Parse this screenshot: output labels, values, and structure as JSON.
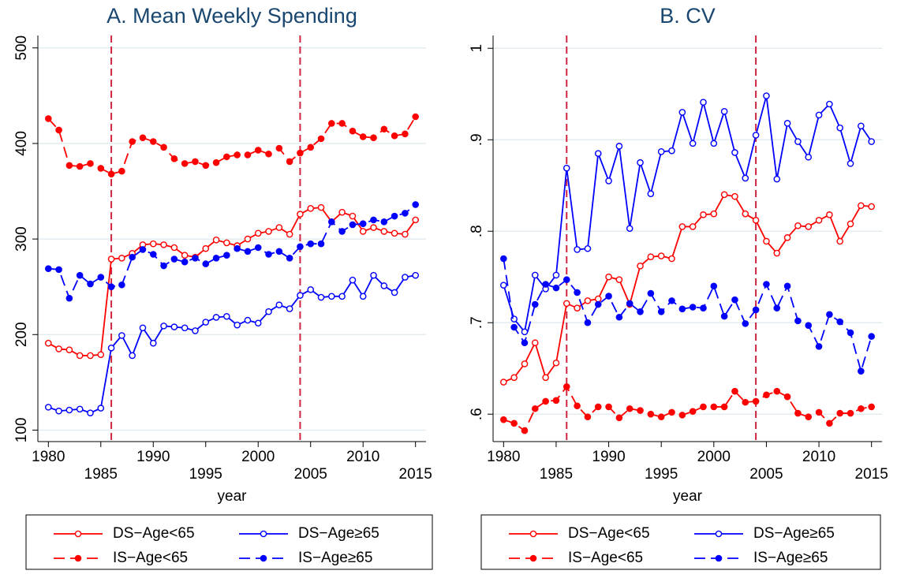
{
  "chart_data": [
    {
      "type": "line",
      "title": "A. Mean Weekly Spending",
      "xlabel": "year",
      "x": [
        1980,
        1981,
        1982,
        1983,
        1984,
        1985,
        1986,
        1987,
        1988,
        1989,
        1990,
        1991,
        1992,
        1993,
        1994,
        1995,
        1996,
        1997,
        1998,
        1999,
        2000,
        2001,
        2002,
        2003,
        2004,
        2005,
        2006,
        2007,
        2008,
        2009,
        2010,
        2011,
        2012,
        2013,
        2014,
        2015
      ],
      "xlim": [
        1979,
        2016
      ],
      "xticks": [
        1980,
        1985,
        1990,
        1995,
        2000,
        2005,
        2010,
        2015
      ],
      "ylim": [
        88,
        513
      ],
      "yticks": [
        100,
        200,
        300,
        400,
        500
      ],
      "grid": true,
      "vlines": [
        1986,
        2004
      ],
      "vline_color": "#d0243f",
      "series": [
        {
          "name": "DS−Age<65",
          "color": "#ff0000",
          "dashed": false,
          "marker": "hollow",
          "values": [
            191,
            185,
            184,
            178,
            178,
            179,
            279,
            280,
            285,
            294,
            295,
            294,
            291,
            283,
            281,
            290,
            299,
            296,
            293,
            300,
            306,
            308,
            312,
            305,
            326,
            332,
            333,
            318,
            328,
            324,
            308,
            312,
            308,
            306,
            305,
            320
          ]
        },
        {
          "name": "DS−Age≥65",
          "color": "#0000ff",
          "dashed": false,
          "marker": "hollow",
          "values": [
            124,
            120,
            121,
            122,
            118,
            123,
            186,
            199,
            178,
            207,
            191,
            209,
            208,
            207,
            204,
            213,
            218,
            219,
            210,
            215,
            212,
            224,
            231,
            227,
            241,
            247,
            239,
            240,
            240,
            257,
            240,
            262,
            251,
            244,
            260,
            262
          ]
        },
        {
          "name": "IS−Age<65",
          "color": "#ff0000",
          "dashed": true,
          "marker": "filled",
          "values": [
            426,
            414,
            377,
            376,
            379,
            374,
            368,
            371,
            402,
            406,
            402,
            396,
            384,
            379,
            381,
            377,
            380,
            386,
            388,
            388,
            393,
            389,
            395,
            381,
            390,
            396,
            405,
            421,
            421,
            413,
            407,
            406,
            415,
            408,
            410,
            428
          ]
        },
        {
          "name": "IS−Age≥65",
          "color": "#0000ff",
          "dashed": true,
          "marker": "filled",
          "values": [
            269,
            268,
            238,
            262,
            253,
            260,
            250,
            252,
            281,
            289,
            284,
            272,
            279,
            276,
            280,
            274,
            280,
            283,
            290,
            287,
            291,
            284,
            287,
            280,
            292,
            295,
            295,
            318,
            308,
            315,
            316,
            320,
            318,
            324,
            327,
            336
          ]
        }
      ]
    },
    {
      "type": "line",
      "title": "B. CV",
      "xlabel": "year",
      "x": [
        1980,
        1981,
        1982,
        1983,
        1984,
        1985,
        1986,
        1987,
        1988,
        1989,
        1990,
        1991,
        1992,
        1993,
        1994,
        1995,
        1996,
        1997,
        1998,
        1999,
        2000,
        2001,
        2002,
        2003,
        2004,
        2005,
        2006,
        2007,
        2008,
        2009,
        2010,
        2011,
        2012,
        2013,
        2014,
        2015
      ],
      "xlim": [
        1979,
        2016
      ],
      "xticks": [
        1980,
        1985,
        1990,
        1995,
        2000,
        2005,
        2010,
        2015
      ],
      "ylim": [
        0.57,
        1.014
      ],
      "yticks": [
        {
          "value": 0.6,
          "label": ".6"
        },
        {
          "value": 0.7,
          "label": ".7"
        },
        {
          "value": 0.8,
          "label": ".8"
        },
        {
          "value": 0.9,
          "label": ".9"
        },
        1
      ],
      "grid": true,
      "vlines": [
        1986,
        2004
      ],
      "vline_color": "#d0243f",
      "series": [
        {
          "name": "DS−Age<65",
          "color": "#ff0000",
          "dashed": false,
          "marker": "hollow",
          "values": [
            0.635,
            0.64,
            0.655,
            0.678,
            0.64,
            0.656,
            0.721,
            0.716,
            0.724,
            0.726,
            0.75,
            0.747,
            0.72,
            0.762,
            0.772,
            0.773,
            0.77,
            0.805,
            0.805,
            0.818,
            0.819,
            0.84,
            0.838,
            0.819,
            0.812,
            0.789,
            0.776,
            0.793,
            0.806,
            0.805,
            0.812,
            0.818,
            0.789,
            0.808,
            0.828,
            0.827
          ]
        },
        {
          "name": "DS−Age≥65",
          "color": "#0000ff",
          "dashed": false,
          "marker": "hollow",
          "values": [
            0.741,
            0.704,
            0.69,
            0.752,
            0.737,
            0.752,
            0.869,
            0.78,
            0.781,
            0.885,
            0.855,
            0.893,
            0.803,
            0.875,
            0.841,
            0.887,
            0.888,
            0.93,
            0.896,
            0.941,
            0.896,
            0.931,
            0.886,
            0.858,
            0.905,
            0.948,
            0.857,
            0.918,
            0.898,
            0.881,
            0.927,
            0.939,
            0.913,
            0.874,
            0.915,
            0.898
          ]
        },
        {
          "name": "IS−Age<65",
          "color": "#ff0000",
          "dashed": true,
          "marker": "filled",
          "values": [
            0.594,
            0.59,
            0.582,
            0.606,
            0.614,
            0.615,
            0.63,
            0.609,
            0.597,
            0.608,
            0.608,
            0.596,
            0.606,
            0.604,
            0.6,
            0.597,
            0.602,
            0.599,
            0.603,
            0.608,
            0.608,
            0.608,
            0.625,
            0.613,
            0.614,
            0.621,
            0.625,
            0.619,
            0.601,
            0.597,
            0.602,
            0.59,
            0.601,
            0.601,
            0.606,
            0.608
          ]
        },
        {
          "name": "IS−Age≥65",
          "color": "#0000ff",
          "dashed": true,
          "marker": "filled",
          "values": [
            0.77,
            0.695,
            0.678,
            0.72,
            0.742,
            0.738,
            0.747,
            0.733,
            0.7,
            0.72,
            0.729,
            0.706,
            0.721,
            0.712,
            0.732,
            0.712,
            0.724,
            0.715,
            0.717,
            0.716,
            0.74,
            0.707,
            0.725,
            0.699,
            0.714,
            0.742,
            0.716,
            0.74,
            0.702,
            0.697,
            0.674,
            0.709,
            0.701,
            0.689,
            0.647,
            0.685
          ]
        }
      ]
    }
  ]
}
